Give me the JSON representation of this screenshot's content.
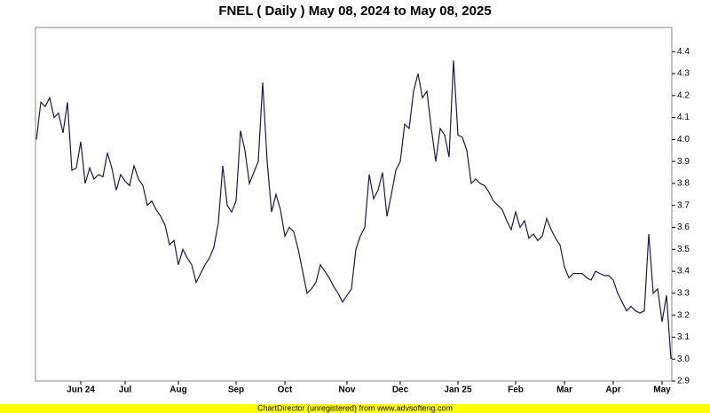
{
  "chart_data": {
    "type": "line",
    "title": "FNEL ( Daily ) May 08, 2024 to May 08, 2025",
    "footer": "ChartDirector (unregistered) from www.advsofteng.com",
    "categories": [
      null,
      null,
      null,
      null,
      null,
      null,
      null,
      null,
      null,
      null,
      "Jun 24",
      null,
      null,
      null,
      null,
      null,
      null,
      null,
      null,
      null,
      "Jul",
      null,
      null,
      null,
      null,
      null,
      null,
      null,
      null,
      null,
      null,
      null,
      "Aug",
      null,
      null,
      null,
      null,
      null,
      null,
      null,
      null,
      null,
      null,
      null,
      null,
      "Sep",
      null,
      null,
      null,
      null,
      null,
      null,
      null,
      null,
      null,
      null,
      "Oct",
      null,
      null,
      null,
      null,
      null,
      null,
      null,
      null,
      null,
      null,
      null,
      null,
      null,
      "Nov",
      null,
      null,
      null,
      null,
      null,
      null,
      null,
      null,
      null,
      null,
      null,
      "Dec",
      null,
      null,
      null,
      null,
      null,
      null,
      null,
      null,
      null,
      null,
      null,
      null,
      "Jan 25",
      null,
      null,
      null,
      null,
      null,
      null,
      null,
      null,
      null,
      null,
      null,
      null,
      "Feb",
      null,
      null,
      null,
      null,
      null,
      null,
      null,
      null,
      null,
      null,
      "Mar",
      null,
      null,
      null,
      null,
      null,
      null,
      null,
      null,
      null,
      null,
      "Apr",
      null,
      null,
      null,
      null,
      null,
      null,
      null,
      null,
      null,
      null,
      "May",
      null,
      null
    ],
    "values": [
      4.0,
      4.17,
      4.15,
      4.19,
      4.1,
      4.12,
      4.03,
      4.17,
      3.86,
      3.87,
      3.99,
      3.8,
      3.87,
      3.82,
      3.84,
      3.83,
      3.94,
      3.87,
      3.77,
      3.84,
      3.81,
      3.79,
      3.88,
      3.82,
      3.79,
      3.7,
      3.72,
      3.68,
      3.65,
      3.61,
      3.52,
      3.54,
      3.43,
      3.5,
      3.46,
      3.43,
      3.35,
      3.39,
      3.43,
      3.46,
      3.51,
      3.62,
      3.88,
      3.7,
      3.67,
      3.72,
      4.04,
      3.95,
      3.8,
      3.85,
      3.9,
      4.26,
      3.9,
      3.67,
      3.75,
      3.68,
      3.56,
      3.6,
      3.58,
      3.5,
      3.4,
      3.3,
      3.32,
      3.35,
      3.43,
      3.4,
      3.37,
      3.33,
      3.3,
      3.26,
      3.29,
      3.32,
      3.5,
      3.56,
      3.6,
      3.84,
      3.73,
      3.77,
      3.85,
      3.65,
      3.75,
      3.86,
      3.9,
      4.07,
      4.05,
      4.22,
      4.3,
      4.19,
      4.22,
      4.05,
      3.9,
      4.05,
      4.02,
      3.92,
      4.36,
      4.02,
      4.01,
      3.95,
      3.8,
      3.82,
      3.8,
      3.79,
      3.76,
      3.72,
      3.7,
      3.68,
      3.63,
      3.59,
      3.67,
      3.6,
      3.63,
      3.55,
      3.57,
      3.54,
      3.56,
      3.64,
      3.59,
      3.55,
      3.52,
      3.42,
      3.37,
      3.39,
      3.39,
      3.39,
      3.37,
      3.36,
      3.4,
      3.39,
      3.38,
      3.38,
      3.36,
      3.3,
      3.26,
      3.22,
      3.24,
      3.22,
      3.21,
      3.22,
      3.57,
      3.3,
      3.32,
      3.17,
      3.29,
      3.0
    ],
    "color": "#1a1a4e",
    "ylim": [
      2.9,
      4.51
    ],
    "yticks": [
      {
        "value": 2.9,
        "label": "2.9"
      },
      {
        "value": 3,
        "label": "3.0"
      },
      {
        "value": 3.1,
        "label": "3.1"
      },
      {
        "value": 3.2,
        "label": "3.2"
      },
      {
        "value": 3.3,
        "label": "3.3"
      },
      {
        "value": 3.4,
        "label": "3.4"
      },
      {
        "value": 3.5,
        "label": "3.5"
      },
      {
        "value": 3.6,
        "label": "3.6"
      },
      {
        "value": 3.7,
        "label": "3.7"
      },
      {
        "value": 3.8,
        "label": "3.8"
      },
      {
        "value": 3.9,
        "label": "3.9"
      },
      {
        "value": 4,
        "label": "4.0"
      },
      {
        "value": 4.1,
        "label": "4.1"
      },
      {
        "value": 4.2,
        "label": "4.2"
      },
      {
        "value": 4.3,
        "label": "4.3"
      },
      {
        "value": 4.4,
        "label": "4.4"
      }
    ],
    "grid": false
  }
}
